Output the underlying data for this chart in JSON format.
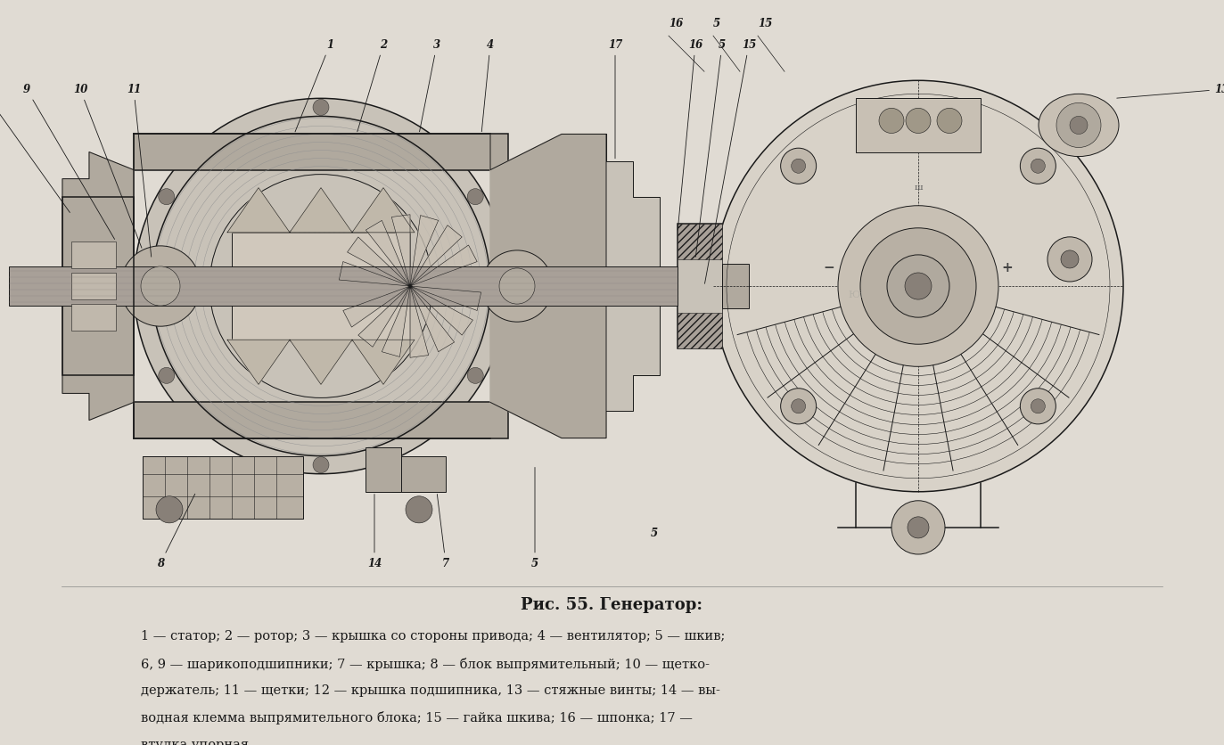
{
  "background_color": "#e0dbd3",
  "title": "Рис. 55. Генератор:",
  "title_fontsize": 13,
  "caption_lines": [
    "1 — статор; 2 — ротор; 3 — крышка со стороны привода; 4 — вентилятор; 5 — шкив;",
    "6, 9 — шарикоподшипники; 7 — крышка; 8 — блок выпрямительный; 10 — щетко-",
    "держатель; 11 — щетки; 12 — крышка подшипника, 13 — стяжные винты; 14 — вы-",
    "водная клемма выпрямительного блока; 15 — гайка шкива; 16 — шпонка; 17 —",
    "втулка упорная"
  ],
  "caption_fontsize": 10.5,
  "fig_width": 13.73,
  "fig_height": 8.36,
  "col": "#1a1a1a",
  "bg": "#e0dbd3",
  "light_gray": "#c8c2b8",
  "mid_gray": "#b0a99e",
  "dark_gray": "#888078"
}
